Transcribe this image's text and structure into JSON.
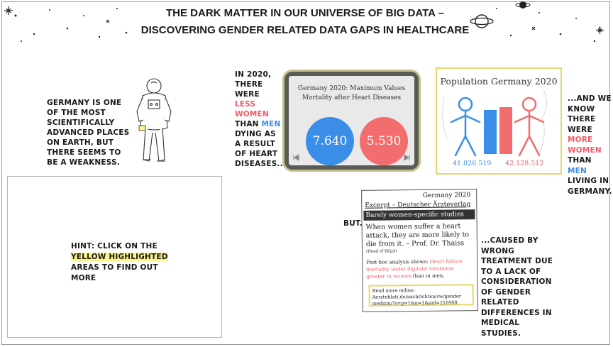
{
  "title": {
    "line1": "The Dark matter in our universe of big data –",
    "line2": "Discovering Gender related data gaps in healthcare"
  },
  "left_note": {
    "text": "Germany is one of the most scientifically advanced places on earth, but there seems to be a weakness."
  },
  "hint": {
    "prefix": "Hint: click on the",
    "highlight": "yellow highlighted",
    "suffix": "areas to find out more"
  },
  "mortality_note": {
    "p1": "In 2020, there were",
    "less_women": "less women",
    "p2": "than",
    "men": "men",
    "p3": "dying as a result of heart diseases..."
  },
  "mortality_card": {
    "title_line1": "Germany 2020: Maximum Values",
    "title_line2": "Mortality after Heart Diseases",
    "men_value": "7.640",
    "women_value": "5.530",
    "prev_icon": "prev-arrow-icon",
    "next_icon": "next-arrow-icon",
    "colors": {
      "men": "#3a8ee8",
      "women": "#f26d6d"
    }
  },
  "population_card": {
    "title": "Population Germany 2020",
    "men_value": "41.026.519",
    "women_value": "42.128.512"
  },
  "population_note": {
    "p1": "...and we know there were",
    "more_women": "more women",
    "p2": "than",
    "men": "men",
    "p3": "living in Germany."
  },
  "but_note": {
    "text": "but..."
  },
  "excerpt": {
    "date": "Germany 2020",
    "source": "Excerpt – Deutscher Ärzteverlag",
    "banner": "Barely women-specific studies",
    "quote1": "When women suffer a heart",
    "quote2": "attack, they are more likely to",
    "quote3": "die from it. – Prof. Dr. Thaiss",
    "quote_role": "(Head of BZgA)",
    "analysis_prefix": "Post-hoc analysis shows:",
    "analysis_red1": "Heart failure",
    "analysis_red2": "mortality under digitalis treatment",
    "analysis_red3": "greater in women",
    "analysis_suffix": "than in men.",
    "read_label": "Read more online:",
    "link1": "Aerzteblatt.de/nachrichten/sw/gender",
    "link2": "medizin/?s=p=1&n=1&aid=216908"
  },
  "caused_note": {
    "text": "...caused by wrong treatment due to a lack of consideration of gender related differences in medical studies."
  }
}
